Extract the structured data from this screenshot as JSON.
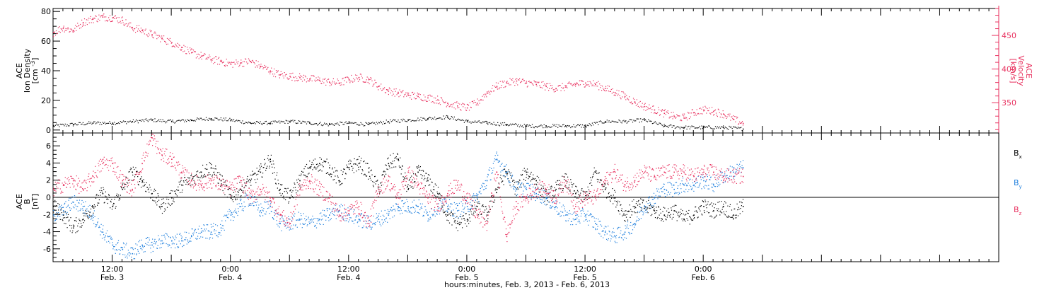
{
  "colors": {
    "black": "#000000",
    "blue": "#1f7fdd",
    "pink": "#e8315f"
  },
  "x_axis": {
    "title": "hours:minutes, Feb.  3, 2013 - Feb.  6, 2013",
    "range_hours": [
      0,
      96
    ],
    "ticks": [
      {
        "hour": 6,
        "time": "12:00",
        "date": "Feb. 3"
      },
      {
        "hour": 18,
        "time": "0:00",
        "date": "Feb. 4"
      },
      {
        "hour": 30,
        "time": "12:00",
        "date": "Feb. 4"
      },
      {
        "hour": 42,
        "time": "0:00",
        "date": "Feb. 5"
      },
      {
        "hour": 54,
        "time": "12:00",
        "date": "Feb. 5"
      },
      {
        "hour": 66,
        "time": "0:00",
        "date": "Feb. 6"
      }
    ]
  },
  "chart_data": [
    {
      "type": "scatter",
      "panel": "plasma",
      "left_axis": {
        "label_lines": [
          "ACE",
          "Ion Density",
          "[cm^-3]"
        ],
        "ylim": [
          -2,
          82
        ],
        "ticks": [
          "0",
          "20",
          "40",
          "60",
          "80"
        ],
        "tick_values": [
          0,
          20,
          40,
          60,
          80
        ]
      },
      "right_axis": {
        "label_lines": [
          "ACE",
          "Velocity",
          "[km/s]"
        ],
        "ylim": [
          305,
          490
        ],
        "ticks": [
          "350",
          "400",
          "450"
        ],
        "tick_values": [
          350,
          400,
          450
        ]
      },
      "series": [
        {
          "axis": "left",
          "color": "black",
          "x": [
            0,
            2,
            4,
            6,
            8,
            10,
            12,
            14,
            16,
            18,
            20,
            22,
            24,
            26,
            28,
            30,
            32,
            34,
            36,
            38,
            40,
            42,
            44,
            46,
            48,
            50,
            52,
            54,
            56,
            58,
            60,
            62,
            64,
            66,
            68,
            70
          ],
          "y": [
            3,
            4,
            5,
            5,
            6,
            7,
            6,
            7,
            8,
            7,
            5,
            5,
            6,
            5,
            4,
            5,
            4,
            6,
            7,
            8,
            9,
            6,
            5,
            4,
            3,
            3,
            3,
            3,
            6,
            6,
            7,
            3,
            2,
            2,
            2,
            1
          ]
        },
        {
          "axis": "right",
          "color": "pink",
          "x": [
            0,
            1,
            2,
            3,
            4,
            5,
            6,
            7,
            8,
            9,
            10,
            11,
            12,
            13,
            14,
            15,
            16,
            17,
            18,
            19,
            20,
            21,
            22,
            23,
            24,
            25,
            26,
            27,
            28,
            29,
            30,
            31,
            32,
            33,
            34,
            35,
            36,
            37,
            38,
            39,
            40,
            41,
            42,
            43,
            44,
            45,
            46,
            47,
            48,
            49,
            50,
            51,
            52,
            53,
            54,
            55,
            56,
            57,
            58,
            59,
            60,
            61,
            62,
            63,
            64,
            65,
            66,
            67,
            68,
            69,
            70
          ],
          "y": [
            455,
            462,
            458,
            470,
            475,
            478,
            477,
            473,
            462,
            458,
            452,
            446,
            440,
            433,
            425,
            420,
            415,
            412,
            408,
            410,
            412,
            405,
            398,
            392,
            390,
            388,
            386,
            384,
            381,
            380,
            385,
            388,
            385,
            375,
            368,
            365,
            362,
            360,
            358,
            355,
            350,
            346,
            343,
            350,
            365,
            375,
            380,
            383,
            380,
            378,
            375,
            372,
            374,
            378,
            380,
            378,
            372,
            366,
            360,
            352,
            345,
            340,
            335,
            330,
            328,
            336,
            340,
            338,
            334,
            326,
            320
          ]
        }
      ]
    },
    {
      "type": "scatter",
      "panel": "magnetic",
      "left_axis": {
        "label_lines": [
          "ACE",
          "B",
          "[nT]"
        ],
        "ylim": [
          -7.5,
          7.5
        ],
        "ticks": [
          "-6",
          "-4",
          "-2",
          "0",
          "2",
          "4",
          "6"
        ],
        "tick_values": [
          -6,
          -4,
          -2,
          0,
          2,
          4,
          6
        ]
      },
      "legend": [
        {
          "name": "B",
          "sub": "x",
          "color": "black"
        },
        {
          "name": "B",
          "sub": "y",
          "color": "blue"
        },
        {
          "name": "B",
          "sub": "z",
          "color": "pink"
        }
      ],
      "series": [
        {
          "name": "Bx",
          "color": "black",
          "x": [
            0,
            1,
            2,
            3,
            4,
            5,
            6,
            7,
            8,
            9,
            10,
            11,
            12,
            13,
            14,
            15,
            16,
            17,
            18,
            19,
            20,
            21,
            22,
            23,
            24,
            25,
            26,
            27,
            28,
            29,
            30,
            31,
            32,
            33,
            34,
            35,
            36,
            37,
            38,
            39,
            40,
            41,
            42,
            43,
            44,
            45,
            46,
            47,
            48,
            49,
            50,
            51,
            52,
            53,
            54,
            55,
            56,
            57,
            58,
            59,
            60,
            61,
            62,
            63,
            64,
            65,
            66,
            67,
            68,
            69,
            70
          ],
          "y": [
            -1,
            -2,
            -3.5,
            -2.5,
            -1,
            0.5,
            -1,
            1,
            3,
            2,
            0.5,
            -1,
            0,
            1.5,
            2,
            3,
            3.5,
            2,
            0,
            1,
            2,
            3,
            4.5,
            1,
            0,
            2,
            3.5,
            4,
            3.5,
            2,
            3.5,
            4,
            3,
            1,
            4,
            4.5,
            1,
            3,
            2,
            0.5,
            -2,
            -3,
            -2.5,
            -1,
            -2,
            1,
            3,
            1,
            3,
            2,
            0,
            1,
            2,
            0.5,
            0,
            3,
            1,
            0,
            -2,
            -1,
            -1,
            -1.5,
            -2,
            -1.5,
            -2.5,
            -2,
            -1,
            -1.5,
            -1,
            -2,
            -1
          ]
        },
        {
          "name": "By",
          "color": "blue",
          "x": [
            0,
            1,
            2,
            3,
            4,
            5,
            6,
            7,
            8,
            9,
            10,
            11,
            12,
            13,
            14,
            15,
            16,
            17,
            18,
            19,
            20,
            21,
            22,
            23,
            24,
            25,
            26,
            27,
            28,
            29,
            30,
            31,
            32,
            33,
            34,
            35,
            36,
            37,
            38,
            39,
            40,
            41,
            42,
            43,
            44,
            45,
            46,
            47,
            48,
            49,
            50,
            51,
            52,
            53,
            54,
            55,
            56,
            57,
            58,
            59,
            60,
            61,
            62,
            63,
            64,
            65,
            66,
            67,
            68,
            69,
            70
          ],
          "y": [
            -2,
            -1.5,
            -0.5,
            -1,
            -2,
            -4,
            -5.5,
            -6,
            -6.5,
            -5.5,
            -5.5,
            -5,
            -5,
            -5,
            -4.5,
            -4,
            -4,
            -3.5,
            -2,
            -1,
            0,
            -1.5,
            -1,
            -3,
            -3,
            -2.5,
            -3,
            -2.5,
            -2,
            -1.5,
            -2,
            -2.5,
            -3,
            -2.5,
            -2,
            -1,
            -1,
            -1,
            -2,
            -1,
            -1,
            -1.5,
            -1,
            0,
            2,
            4.5,
            3,
            1,
            1,
            0.5,
            0,
            -1,
            -2,
            -2.5,
            -2,
            -3,
            -4,
            -4.5,
            -4,
            -3,
            -1,
            0,
            1,
            1,
            1.5,
            1.5,
            2,
            1.5,
            2.5,
            3,
            3.5
          ]
        },
        {
          "name": "Bz",
          "color": "pink",
          "x": [
            0,
            1,
            2,
            3,
            4,
            5,
            6,
            7,
            8,
            9,
            10,
            11,
            12,
            13,
            14,
            15,
            16,
            17,
            18,
            19,
            20,
            21,
            22,
            23,
            24,
            25,
            26,
            27,
            28,
            29,
            30,
            31,
            32,
            33,
            34,
            35,
            36,
            37,
            38,
            39,
            40,
            41,
            42,
            43,
            44,
            45,
            46,
            47,
            48,
            49,
            50,
            51,
            52,
            53,
            54,
            55,
            56,
            57,
            58,
            59,
            60,
            61,
            62,
            63,
            64,
            65,
            66,
            67,
            68,
            69,
            70
          ],
          "y": [
            1,
            1.5,
            2,
            1,
            2.5,
            4,
            4,
            2,
            1,
            4,
            7,
            5,
            4.5,
            3,
            2,
            1.5,
            2,
            1.5,
            1,
            2,
            0,
            1,
            0,
            -2,
            -3,
            1,
            2,
            1,
            0,
            -2,
            -1.5,
            -1,
            -3,
            1,
            2,
            0,
            3,
            1.5,
            0,
            -1,
            0.5,
            1.5,
            0,
            -2,
            -3,
            3,
            -4.5,
            -1,
            0,
            1,
            1,
            0,
            2,
            -1,
            0,
            0,
            2,
            3,
            1.5,
            2,
            3,
            2.5,
            3,
            3,
            3,
            2.5,
            3,
            3,
            2.5,
            2.5,
            2.5
          ]
        }
      ]
    }
  ]
}
